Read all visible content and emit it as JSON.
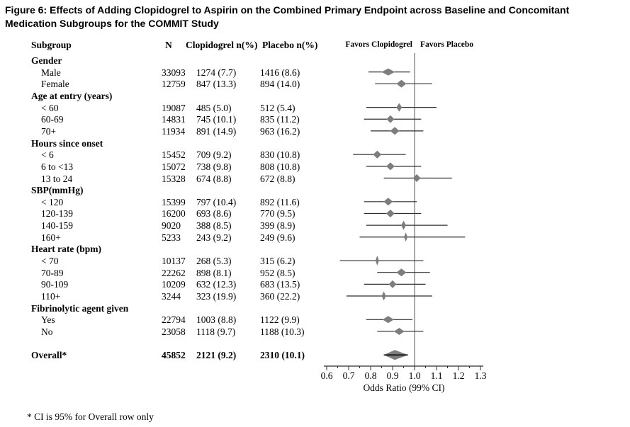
{
  "title_lines": [
    "Figure 6: Effects of Adding Clopidogrel to Aspirin on the Combined Primary Endpoint across Baseline and Concomitant",
    "Medication Subgroups for the COMMIT Study"
  ],
  "footnote": "* CI is 95% for Overall row only",
  "columns": {
    "subgroup": "Subgroup",
    "n": "N",
    "clopidogrel": "Clopidogrel n(%)",
    "placebo": "Placebo n(%)"
  },
  "plot_headers": {
    "left": "Favors Clopidogrel",
    "right": "Favors Placebo"
  },
  "chart_data": {
    "type": "forest",
    "xlabel": "Odds Ratio (99% CI)",
    "x_ticks": [
      "0.6",
      "0.7",
      "0.8",
      "0.9",
      "1.0",
      "1.1",
      "1.2",
      "1.3"
    ],
    "x_minor_step": 0.05,
    "xlim": [
      0.6,
      1.3
    ],
    "reference_line": 1.0,
    "grid": false,
    "colors": {
      "diamond": "#7d7d7d",
      "ci_line": "#2e2e2e",
      "axis": "#2e2e2e",
      "ref_line": "#737373",
      "overall_line": "#000000"
    },
    "rows": [
      {
        "type": "group",
        "label": "Gender"
      },
      {
        "type": "item",
        "label": "Male",
        "n": "33093",
        "clopidogrel": "1274 (7.7)",
        "placebo": "1416 (8.6)",
        "or": 0.88,
        "ci": [
          0.79,
          0.98
        ],
        "marker_w": 19,
        "marker_h": 10
      },
      {
        "type": "item",
        "label": "Female",
        "n": "12759",
        "clopidogrel": "847 (13.3)",
        "placebo": "894 (14.0)",
        "or": 0.94,
        "ci": [
          0.82,
          1.08
        ],
        "marker_w": 14,
        "marker_h": 11
      },
      {
        "type": "group",
        "label": "Age at entry (years)"
      },
      {
        "type": "item",
        "label": "< 60",
        "n": "19087",
        "clopidogrel": "485 (5.0)",
        "placebo": "512 (5.4)",
        "or": 0.93,
        "ci": [
          0.78,
          1.1
        ],
        "marker_w": 8,
        "marker_h": 12
      },
      {
        "type": "item",
        "label": "60-69",
        "n": "14831",
        "clopidogrel": "745 (10.1)",
        "placebo": "835 (11.2)",
        "or": 0.89,
        "ci": [
          0.77,
          1.03
        ],
        "marker_w": 11,
        "marker_h": 11
      },
      {
        "type": "item",
        "label": "70+",
        "n": "11934",
        "clopidogrel": "891 (14.9)",
        "placebo": "963 (16.2)",
        "or": 0.91,
        "ci": [
          0.8,
          1.04
        ],
        "marker_w": 13,
        "marker_h": 11
      },
      {
        "type": "group",
        "label": "Hours since onset"
      },
      {
        "type": "item",
        "label": "< 6",
        "n": "15452",
        "clopidogrel": "709 (9.2)",
        "placebo": "830 (10.8)",
        "or": 0.83,
        "ci": [
          0.72,
          0.96
        ],
        "marker_w": 12,
        "marker_h": 11
      },
      {
        "type": "item",
        "label": "6 to <13",
        "n": "15072",
        "clopidogrel": "738 (9.8)",
        "placebo": "808 (10.8)",
        "or": 0.89,
        "ci": [
          0.78,
          1.03
        ],
        "marker_w": 12,
        "marker_h": 11
      },
      {
        "type": "item",
        "label": "13 to 24",
        "n": "15328",
        "clopidogrel": "674 (8.8)",
        "placebo": "672 (8.8)",
        "or": 1.01,
        "ci": [
          0.86,
          1.17
        ],
        "marker_w": 11,
        "marker_h": 11
      },
      {
        "type": "group",
        "label": "SBP(mmHg)"
      },
      {
        "type": "item",
        "label": "< 120",
        "n": "15399",
        "clopidogrel": "797 (10.4)",
        "placebo": "892 (11.6)",
        "or": 0.88,
        "ci": [
          0.77,
          1.01
        ],
        "marker_w": 13,
        "marker_h": 11
      },
      {
        "type": "item",
        "label": "120-139",
        "n": "16200",
        "clopidogrel": "693 (8.6)",
        "placebo": "770 (9.5)",
        "or": 0.89,
        "ci": [
          0.77,
          1.03
        ],
        "marker_w": 12,
        "marker_h": 11
      },
      {
        "type": "item",
        "label": "140-159",
        "n": "9020",
        "clopidogrel": "388 (8.5)",
        "placebo": "399 (8.9)",
        "or": 0.95,
        "ci": [
          0.78,
          1.15
        ],
        "marker_w": 7,
        "marker_h": 13
      },
      {
        "type": "item",
        "label": "160+",
        "n": "5233",
        "clopidogrel": "243 (9.2)",
        "placebo": "249 (9.6)",
        "or": 0.96,
        "ci": [
          0.75,
          1.23
        ],
        "marker_w": 5,
        "marker_h": 13
      },
      {
        "type": "group",
        "label": "Heart rate (bpm)"
      },
      {
        "type": "item",
        "label": "< 70",
        "n": "10137",
        "clopidogrel": "268 (5.3)",
        "placebo": "315 (6.2)",
        "or": 0.83,
        "ci": [
          0.66,
          1.04
        ],
        "marker_w": 5,
        "marker_h": 14
      },
      {
        "type": "item",
        "label": "70-89",
        "n": "22262",
        "clopidogrel": "898 (8.1)",
        "placebo": "952 (8.5)",
        "or": 0.94,
        "ci": [
          0.83,
          1.07
        ],
        "marker_w": 14,
        "marker_h": 11
      },
      {
        "type": "item",
        "label": "90-109",
        "n": "10209",
        "clopidogrel": "632 (12.3)",
        "placebo": "683 (13.5)",
        "or": 0.9,
        "ci": [
          0.77,
          1.05
        ],
        "marker_w": 11,
        "marker_h": 11
      },
      {
        "type": "item",
        "label": "110+",
        "n": "3244",
        "clopidogrel": "323 (19.9)",
        "placebo": "360 (22.2)",
        "or": 0.86,
        "ci": [
          0.69,
          1.08
        ],
        "marker_w": 6,
        "marker_h": 13
      },
      {
        "type": "group",
        "label": "Fibrinolytic agent given"
      },
      {
        "type": "item",
        "label": "Yes",
        "n": "22794",
        "clopidogrel": "1003 (8.8)",
        "placebo": "1122 (9.9)",
        "or": 0.88,
        "ci": [
          0.78,
          0.99
        ],
        "marker_w": 16,
        "marker_h": 10
      },
      {
        "type": "item",
        "label": "No",
        "n": "23058",
        "clopidogrel": "1118 (9.7)",
        "placebo": "1188 (10.3)",
        "or": 0.93,
        "ci": [
          0.83,
          1.04
        ],
        "marker_w": 15,
        "marker_h": 10
      },
      {
        "type": "spacer"
      },
      {
        "type": "overall",
        "label": "Overall*",
        "n": "45852",
        "clopidogrel": "2121 (9.2)",
        "placebo": "2310 (10.1)",
        "or": 0.91,
        "ci": [
          0.86,
          0.97
        ]
      }
    ]
  }
}
